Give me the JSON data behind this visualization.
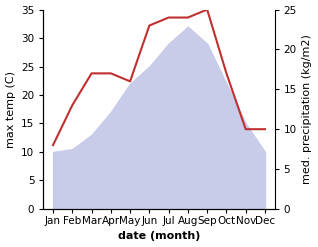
{
  "months": [
    "Jan",
    "Feb",
    "Mar",
    "Apr",
    "May",
    "Jun",
    "Jul",
    "Aug",
    "Sep",
    "Oct",
    "Nov",
    "Dec"
  ],
  "x": [
    0,
    1,
    2,
    3,
    4,
    5,
    6,
    7,
    8,
    9,
    10,
    11
  ],
  "max_temp": [
    10,
    10.5,
    13,
    17,
    22,
    25,
    29,
    32,
    29,
    22,
    15,
    10
  ],
  "precipitation": [
    8,
    13,
    17,
    17,
    16,
    23,
    24,
    24,
    25,
    17,
    10,
    10
  ],
  "temp_fill_color": "#c8cce8",
  "precip_color": "#c03030",
  "temp_ylim": [
    0,
    35
  ],
  "precip_ylim": [
    0,
    25
  ],
  "temp_yticks": [
    0,
    5,
    10,
    15,
    20,
    25,
    30,
    35
  ],
  "precip_yticks": [
    0,
    5,
    10,
    15,
    20,
    25
  ],
  "xlabel": "date (month)",
  "ylabel_left": "max temp (C)",
  "ylabel_right": "med. precipitation (kg/m2)",
  "bg_color": "#ffffff",
  "label_fontsize": 8,
  "tick_fontsize": 7.5
}
